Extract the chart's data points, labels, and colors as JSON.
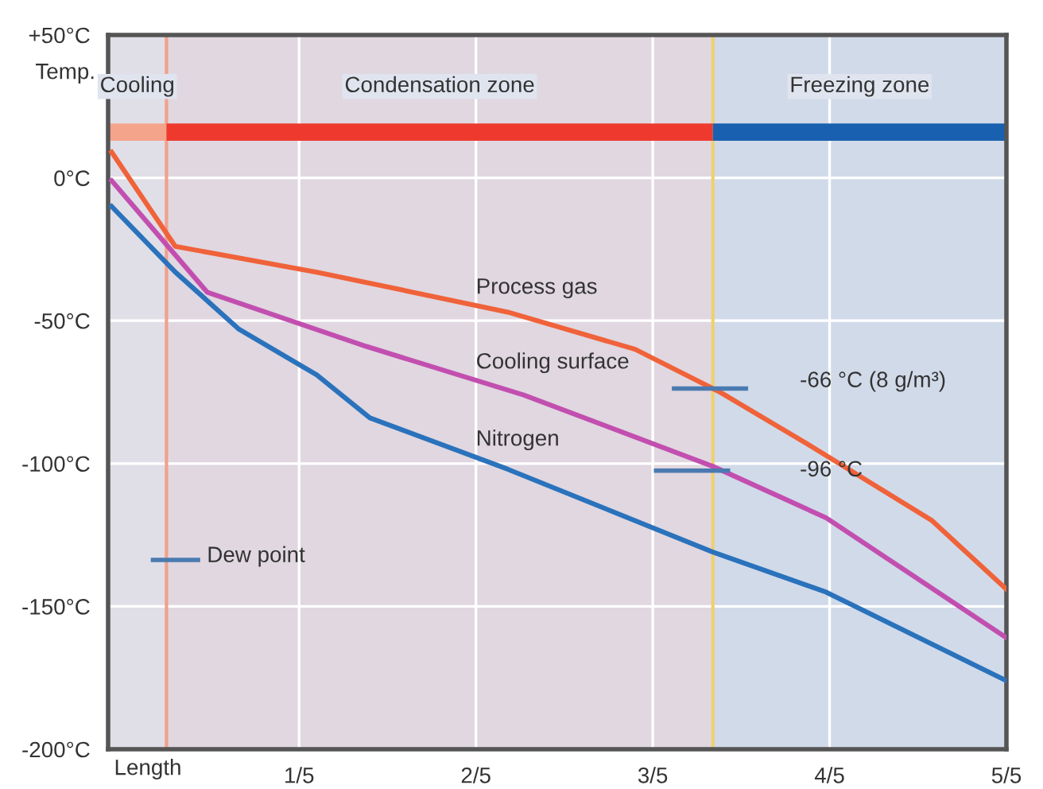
{
  "chart_data": {
    "type": "line",
    "ylabel": "Temp.",
    "xlabel": "Length",
    "annotations": [
      "-66 °C (8 g/m³)",
      "-96 °C",
      "Dew point"
    ],
    "series": [
      {
        "name": "Process gas",
        "color": "#f0623a",
        "x": [
          -0.012,
          0.06,
          0.22,
          0.436,
          0.58,
          0.676,
          0.774,
          0.916,
          1
        ],
        "values": [
          9,
          -24,
          -33,
          -47,
          -60,
          -75,
          -93,
          -120,
          -144
        ]
      },
      {
        "name": "Cooling surface",
        "color": "#c24fb0",
        "x": [
          -0.012,
          0.096,
          0.276,
          0.454,
          0.668,
          0.796,
          1
        ],
        "values": [
          -1,
          -40,
          -59,
          -76,
          -101,
          -119,
          -161
        ]
      },
      {
        "name": "Nitrogen",
        "color": "#2a72bc",
        "x": [
          -0.012,
          0.06,
          0.132,
          0.22,
          0.28,
          0.436,
          0.668,
          0.796,
          1
        ],
        "values": [
          -10,
          -33,
          -53,
          -69,
          -84,
          -102,
          -131,
          -145,
          -176
        ]
      }
    ],
    "bands": [
      {
        "axis": "x",
        "from": -0.016,
        "to": 0.05,
        "label": "Cooling",
        "color": "#f4a48a"
      },
      {
        "axis": "x",
        "from": 0.05,
        "to": 0.668,
        "label": "Condensation zone",
        "color": "#ee3a2e"
      },
      {
        "axis": "x",
        "from": 0.668,
        "to": 1,
        "label": "Freezing zone",
        "color": "#1a60b0"
      }
    ],
    "ref_lines": [
      {
        "axis": "x",
        "value": 0.05,
        "color": "#f2a08c"
      },
      {
        "axis": "x",
        "value": 0.668,
        "color": "#f0d070"
      }
    ],
    "xlim": [
      -0.016,
      1
    ],
    "ylim": [
      -200,
      50
    ],
    "xticks": [
      {
        "value": 0.2,
        "label": "1/5"
      },
      {
        "value": 0.4,
        "label": "2/5"
      },
      {
        "value": 0.6,
        "label": "3/5"
      },
      {
        "value": 0.8,
        "label": "4/5"
      },
      {
        "value": 1,
        "label": "5/5"
      }
    ],
    "yticks": [
      {
        "value": 50,
        "label": "+50°C"
      },
      {
        "value": 0,
        "label": "0°C"
      },
      {
        "value": -50,
        "label": "-50°C"
      },
      {
        "value": -100,
        "label": "-100°C"
      },
      {
        "value": -150,
        "label": "-150°C"
      },
      {
        "value": -200,
        "label": "-200°C"
      }
    ],
    "grid": true,
    "marker": "none",
    "line_style": "solid"
  }
}
